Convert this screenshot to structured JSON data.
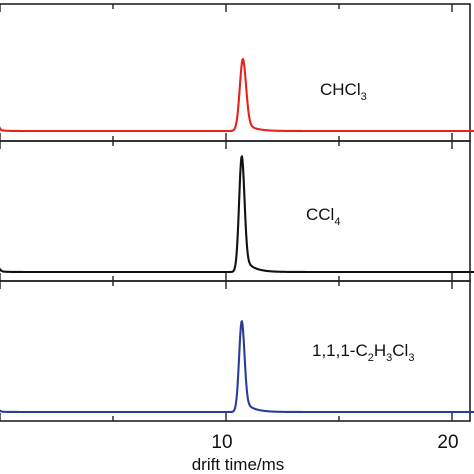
{
  "chart_data": {
    "type": "line",
    "title": "",
    "xlabel": "drift time/ms",
    "ylabel": "",
    "xlim": [
      -0.3,
      21
    ],
    "x_ticks": [
      "10",
      "20"
    ],
    "grid": false,
    "legend": "none",
    "layout": "three vertically stacked panels sharing the x axis",
    "panels": [
      {
        "name": "chcl3",
        "label": "CHCl",
        "label_sub": "3",
        "color": "#e8211d",
        "peaks": [
          {
            "center": -0.2,
            "height": 0.2,
            "width": 0.1
          },
          {
            "center": 10.75,
            "height": 1.0,
            "width": 0.14,
            "tail": 0.18
          }
        ]
      },
      {
        "name": "ccl4",
        "label": "CCl",
        "label_sub": "4",
        "color": "#111111",
        "peaks": [
          {
            "center": -0.2,
            "height": 0.08,
            "width": 0.12
          },
          {
            "center": 10.7,
            "height": 1.0,
            "width": 0.12,
            "tail": 0.18
          }
        ]
      },
      {
        "name": "c2h3cl3",
        "label_parts": [
          "1,1,1-C",
          "2",
          "H",
          "3",
          "Cl",
          "3"
        ],
        "color": "#2b3d9a",
        "peaks": [
          {
            "center": -0.2,
            "height": 0.05,
            "width": 0.12
          },
          {
            "center": 10.7,
            "height": 1.0,
            "width": 0.12,
            "tail": 0.18
          }
        ]
      }
    ]
  }
}
